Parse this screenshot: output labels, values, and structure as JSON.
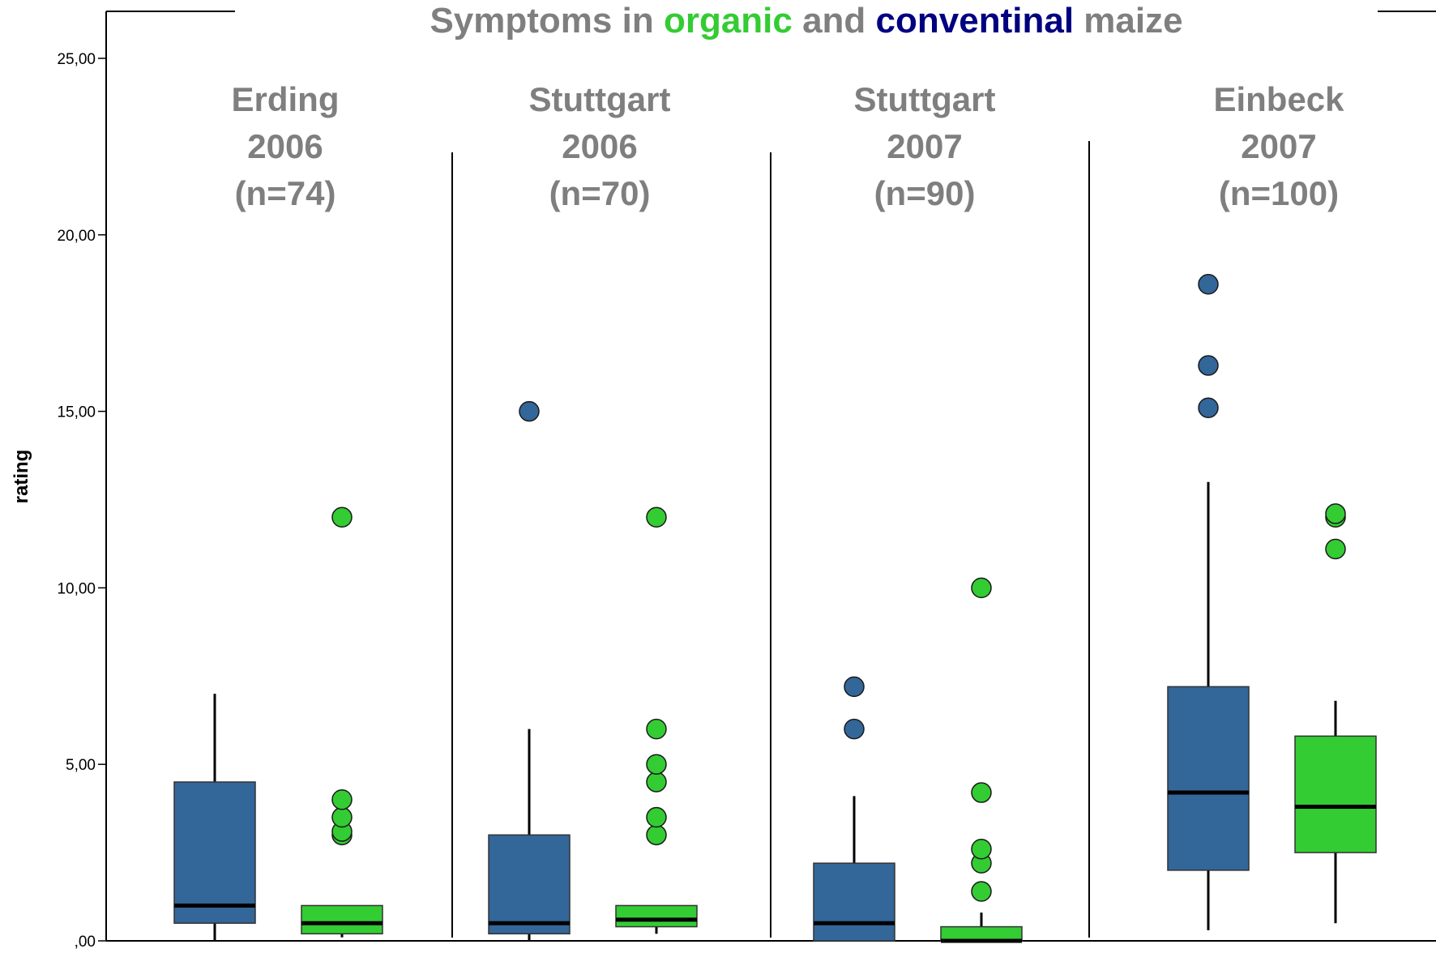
{
  "chart_data": {
    "type": "box",
    "title": {
      "parts": [
        {
          "text": "Symptoms in ",
          "color": "#7f7f7f"
        },
        {
          "text": "organic",
          "color": "#33cc33"
        },
        {
          "text": " and ",
          "color": "#7f7f7f"
        },
        {
          "text": "conventinal",
          "color": "#000080"
        },
        {
          "text": " maize",
          "color": "#7f7f7f"
        }
      ]
    },
    "ylabel": "rating",
    "ylim": [
      0,
      25
    ],
    "yticks": [
      {
        "value": 0,
        "label": ",00"
      },
      {
        "value": 5,
        "label": "5,00"
      },
      {
        "value": 10,
        "label": "10,00"
      },
      {
        "value": 15,
        "label": "15,00"
      },
      {
        "value": 20,
        "label": "20,00"
      },
      {
        "value": 25,
        "label": "25,00"
      }
    ],
    "series_colors": {
      "conventional": "#336699",
      "organic": "#33cc33"
    },
    "groups": [
      {
        "label_lines": [
          "Erding",
          "2006",
          "(n=74)"
        ],
        "boxes": [
          {
            "series": "conventional",
            "whisker_low": 0,
            "q1": 0.5,
            "median": 1.0,
            "q3": 4.5,
            "whisker_high": 7.0,
            "outliers": []
          },
          {
            "series": "organic",
            "whisker_low": 0.1,
            "q1": 0.2,
            "median": 0.5,
            "q3": 1.0,
            "whisker_high": 1.0,
            "outliers": [
              3.0,
              3.1,
              3.5,
              4.0,
              12.0
            ]
          }
        ]
      },
      {
        "label_lines": [
          "Stuttgart",
          "2006",
          "(n=70)"
        ],
        "boxes": [
          {
            "series": "conventional",
            "whisker_low": 0,
            "q1": 0.2,
            "median": 0.5,
            "q3": 3.0,
            "whisker_high": 6.0,
            "outliers": [
              15.0
            ]
          },
          {
            "series": "organic",
            "whisker_low": 0.2,
            "q1": 0.4,
            "median": 0.6,
            "q3": 1.0,
            "whisker_high": 1.0,
            "outliers": [
              3.0,
              3.5,
              4.5,
              5.0,
              6.0,
              12.0
            ]
          }
        ]
      },
      {
        "label_lines": [
          "Stuttgart",
          "2007",
          "(n=90)"
        ],
        "boxes": [
          {
            "series": "conventional",
            "whisker_low": 0,
            "q1": 0,
            "median": 0.5,
            "q3": 2.2,
            "whisker_high": 4.1,
            "outliers": [
              6.0,
              7.2
            ]
          },
          {
            "series": "organic",
            "whisker_low": 0,
            "q1": 0,
            "median": 0,
            "q3": 0.4,
            "whisker_high": 0.8,
            "outliers": [
              1.4,
              2.2,
              2.6,
              4.2,
              10.0
            ]
          }
        ]
      },
      {
        "label_lines": [
          "Einbeck",
          "2007",
          "(n=100)"
        ],
        "boxes": [
          {
            "series": "conventional",
            "whisker_low": 0.3,
            "q1": 2.0,
            "median": 4.2,
            "q3": 7.2,
            "whisker_high": 13.0,
            "outliers": [
              15.1,
              16.3,
              18.6
            ]
          },
          {
            "series": "organic",
            "whisker_low": 0.5,
            "q1": 2.5,
            "median": 3.8,
            "q3": 5.8,
            "whisker_high": 6.8,
            "outliers": [
              11.1,
              12.0,
              12.1
            ]
          }
        ]
      }
    ]
  }
}
